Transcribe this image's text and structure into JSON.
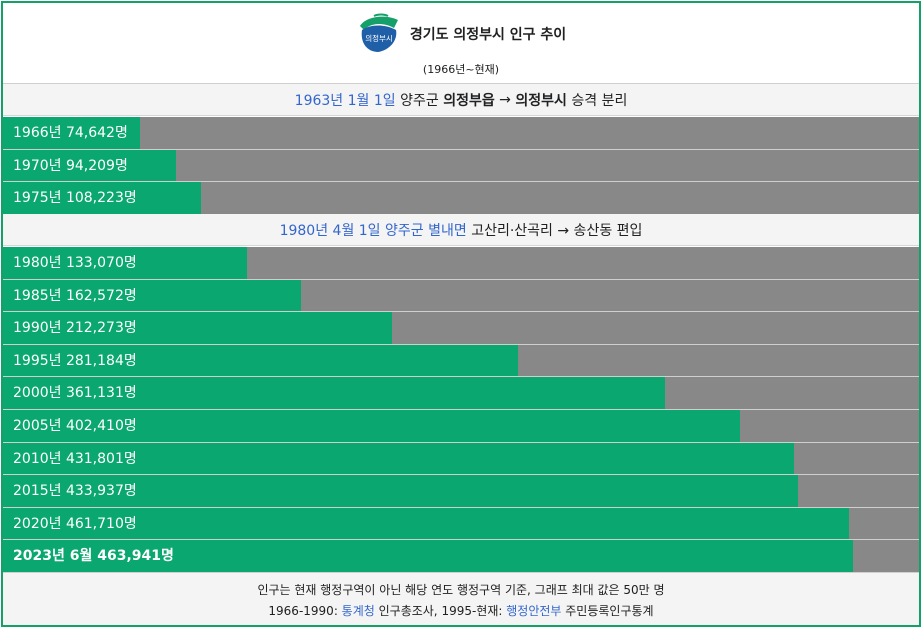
{
  "header": {
    "title": "경기도 의정부시 인구 추이",
    "subtitle": "(1966년~현재)",
    "logo_text": "의정부시"
  },
  "notes": [
    {
      "link1": "1963년 1월 1일",
      "text1": " 양주군 ",
      "bold1": "의정부읍",
      "text2": " → ",
      "bold2": "의정부시",
      "text3": " 승격 분리"
    },
    {
      "link1": "1980년 4월 1일",
      "text1": " ",
      "link2": "양주군 별내면",
      "text2": " 고산리·산곡리 → 송산동 편입"
    }
  ],
  "chart_data": {
    "type": "bar",
    "orientation": "horizontal",
    "xlim": [
      0,
      500000
    ],
    "categories": [
      "1966년",
      "1970년",
      "1975년",
      "1980년",
      "1985년",
      "1990년",
      "1995년",
      "2000년",
      "2005년",
      "2010년",
      "2015년",
      "2020년",
      "2023년 6월"
    ],
    "values": [
      74642,
      94209,
      108223,
      133070,
      162572,
      212273,
      281184,
      361131,
      402410,
      431801,
      433937,
      461710,
      463941
    ],
    "labels": [
      "1966년 74,642명",
      "1970년 94,209명",
      "1975년 108,223명",
      "1980년 133,070명",
      "1985년 162,572명",
      "1990년 212,273명",
      "1995년 281,184명",
      "2000년 361,131명",
      "2005년 402,410명",
      "2010년 431,801명",
      "2015년 433,937명",
      "2020년 461,710명",
      "2023년 6월 463,941명"
    ],
    "colors": {
      "bar": "#0aa870",
      "track": "#888888"
    }
  },
  "footer": {
    "line1": "인구는 현재 행정구역이 아닌 해당 연도 행정구역 기준, 그래프 최대 값은 50만 명",
    "line2_a": "1966-1990: ",
    "line2_link1": "통계청",
    "line2_b": " 인구총조사, 1995-현재: ",
    "line2_link2": "행정안전부",
    "line2_c": " 주민등록인구통계"
  }
}
